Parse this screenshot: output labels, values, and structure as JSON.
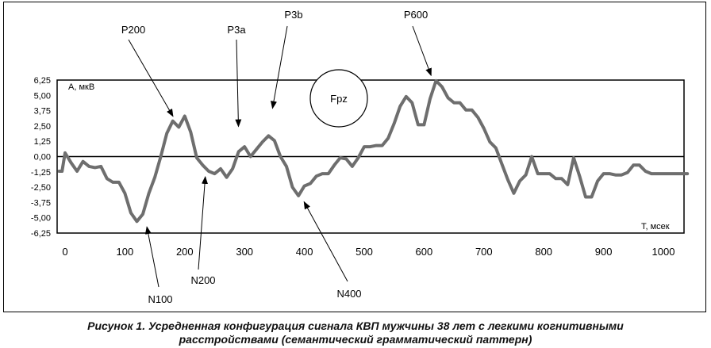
{
  "chart_data": {
    "type": "line",
    "ylabel": "А, мкВ",
    "xlabel": "Т, мсек",
    "xlim": [
      0,
      1050
    ],
    "ylim": [
      -6.25,
      6.25
    ],
    "x_ticks": [
      0,
      100,
      200,
      300,
      400,
      500,
      600,
      700,
      800,
      900,
      1000
    ],
    "y_ticks": [
      "6,25",
      "5,00",
      "3,75",
      "2,50",
      "1,25",
      "0,00",
      "-1,25",
      "-2,50",
      "-3,75",
      "-5,00",
      "-6,25"
    ],
    "y_tick_values": [
      6.25,
      5.0,
      3.75,
      2.5,
      1.25,
      0.0,
      -1.25,
      -2.5,
      -3.75,
      -5.0,
      -6.25
    ],
    "grid": false,
    "electrode_label": "Fpz",
    "series": [
      {
        "color": "#6e6e6e",
        "x": [
          -10,
          -5,
          0,
          5,
          10,
          20,
          30,
          40,
          50,
          60,
          70,
          80,
          90,
          100,
          110,
          120,
          130,
          140,
          150,
          160,
          170,
          180,
          190,
          200,
          210,
          220,
          230,
          240,
          250,
          260,
          270,
          280,
          290,
          300,
          310,
          320,
          330,
          340,
          350,
          360,
          370,
          380,
          390,
          400,
          410,
          420,
          430,
          440,
          450,
          460,
          470,
          480,
          490,
          500,
          510,
          520,
          530,
          540,
          550,
          560,
          570,
          580,
          590,
          600,
          610,
          620,
          630,
          640,
          650,
          660,
          670,
          680,
          690,
          700,
          710,
          720,
          730,
          740,
          750,
          760,
          770,
          780,
          790,
          800,
          810,
          820,
          830,
          840,
          850,
          860,
          870,
          880,
          890,
          900,
          910,
          920,
          930,
          940,
          950,
          960,
          970,
          980,
          990,
          1000,
          1010,
          1020,
          1030,
          1040
        ],
        "y": [
          -1.2,
          -1.2,
          0.3,
          -0.1,
          -0.5,
          -1.2,
          -0.4,
          -0.8,
          -0.9,
          -0.8,
          -1.8,
          -2.1,
          -2.1,
          -3.0,
          -4.6,
          -5.3,
          -4.7,
          -3.0,
          -1.7,
          0.0,
          1.9,
          2.9,
          2.4,
          3.3,
          2.0,
          -0.1,
          -0.7,
          -1.2,
          -1.4,
          -1.0,
          -1.7,
          -1.0,
          0.4,
          0.8,
          0.0,
          0.6,
          1.2,
          1.7,
          1.3,
          0.0,
          -0.8,
          -2.5,
          -3.2,
          -2.4,
          -2.2,
          -1.6,
          -1.4,
          -1.4,
          -0.7,
          -0.1,
          -0.2,
          -0.8,
          -0.1,
          0.8,
          0.8,
          0.9,
          0.9,
          1.5,
          2.7,
          4.1,
          4.9,
          4.4,
          2.6,
          2.6,
          4.7,
          6.2,
          5.7,
          4.8,
          4.4,
          4.4,
          3.8,
          3.8,
          3.2,
          2.3,
          1.2,
          0.7,
          -0.6,
          -1.9,
          -3.0,
          -2.0,
          -1.5,
          0.0,
          -1.4,
          -1.4,
          -1.4,
          -1.8,
          -1.8,
          -2.3,
          -0.1,
          -1.6,
          -3.3,
          -3.3,
          -2.0,
          -1.4,
          -1.4,
          -1.5,
          -1.5,
          -1.3,
          -0.7,
          -0.7,
          -1.2,
          -1.4,
          -1.4,
          -1.4,
          -1.4,
          -1.4,
          -1.4,
          -1.4
        ]
      }
    ],
    "annotations": [
      {
        "text": "P200",
        "x": 185,
        "y": 2.9
      },
      {
        "text": "P3a",
        "x": 290,
        "y": 2.0
      },
      {
        "text": "P3b",
        "x": 345,
        "y": 3.5
      },
      {
        "text": "P600",
        "x": 615,
        "y": 6.2
      },
      {
        "text": "N100",
        "x": 135,
        "y": -5.3
      },
      {
        "text": "N200",
        "x": 235,
        "y": -1.2
      },
      {
        "text": "N400",
        "x": 395,
        "y": -3.3
      }
    ]
  },
  "caption": {
    "line1": "Рисунок 1. Усредненная конфигурация сигнала КВП мужчины 38 лет с легкими когнитивными",
    "line2": "расстройствами (семантический грамматический паттерн)"
  }
}
